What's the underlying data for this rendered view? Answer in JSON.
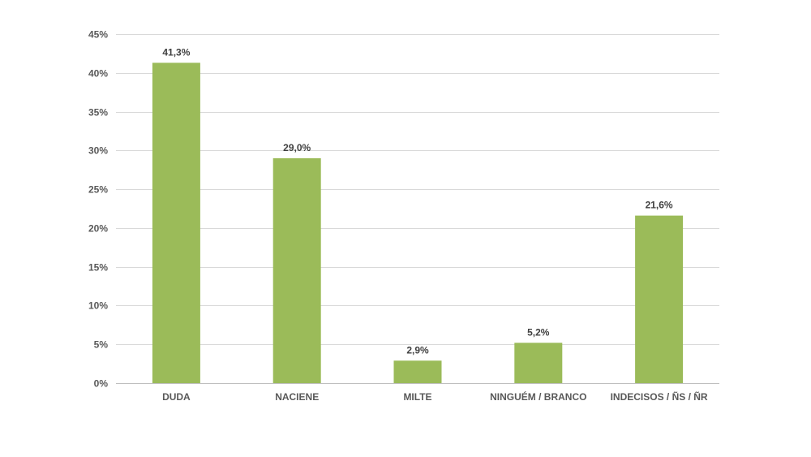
{
  "chart_data": {
    "type": "bar",
    "categories": [
      "DUDA",
      "NACIENE",
      "MILTE",
      "NINGUÉM / BRANCO",
      "INDECISOS / ÑS / ÑR"
    ],
    "values": [
      41.3,
      29.0,
      2.9,
      5.2,
      21.6
    ],
    "data_labels": [
      "41,3%",
      "29,0%",
      "2,9%",
      "5,2%",
      "21,6%"
    ],
    "y_ticks": [
      0,
      5,
      10,
      15,
      20,
      25,
      30,
      35,
      40,
      45
    ],
    "y_tick_labels": [
      "0%",
      "5%",
      "10%",
      "15%",
      "20%",
      "25%",
      "30%",
      "35%",
      "40%",
      "45%"
    ],
    "ylim": [
      0,
      45
    ],
    "grid": true,
    "bar_color": "#9bbb59",
    "title": "",
    "xlabel": "",
    "ylabel": ""
  }
}
